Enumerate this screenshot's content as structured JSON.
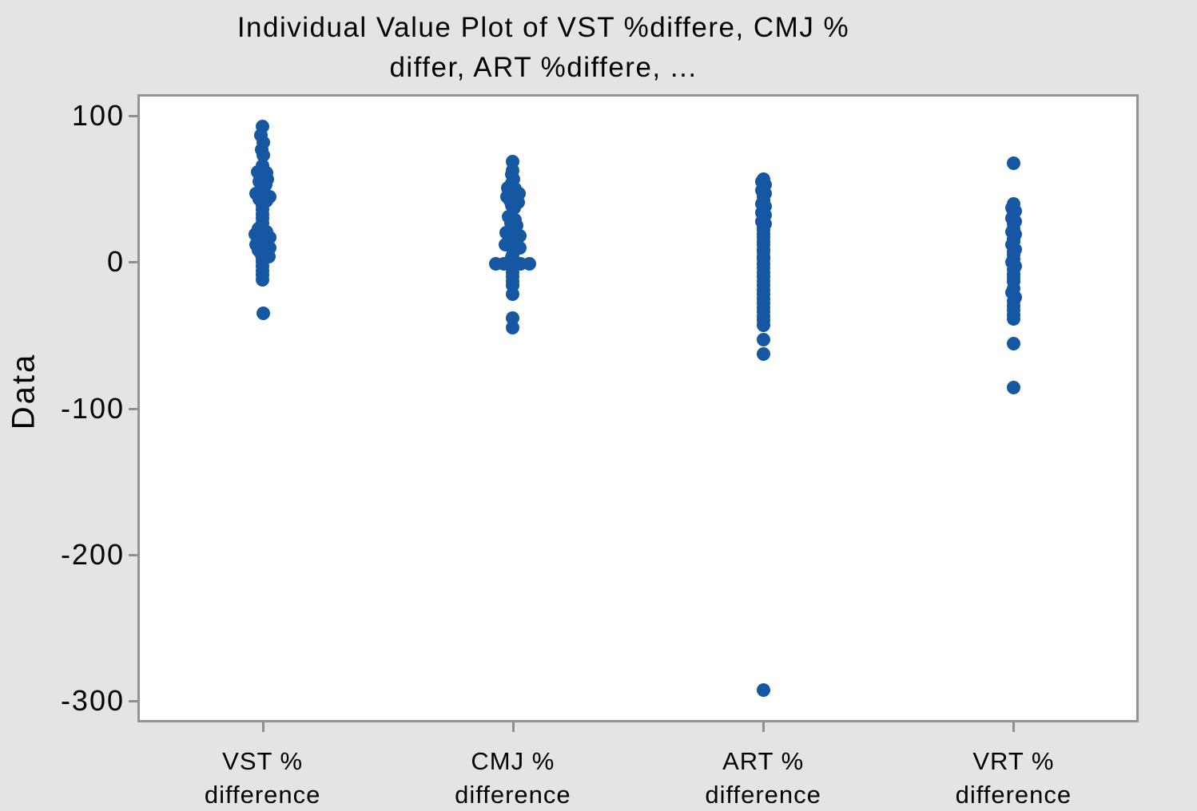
{
  "title": {
    "line1": "Individual Value Plot of VST %differe, CMJ %",
    "line2": "differ, ART %differe, ..."
  },
  "y_axis": {
    "label": "Data"
  },
  "colors": {
    "dot": "#1557a2",
    "page_bg": "#e4e4e4",
    "plot_bg": "#ffffff",
    "plot_border": "#949494",
    "tick": "#8f8f8f",
    "text": "#000000"
  },
  "chart_data": {
    "type": "scatter",
    "subtype": "individual-value-plot",
    "title": "Individual Value Plot of VST %differe, CMJ % differ, ART %differe, ...",
    "xlabel": "",
    "ylabel": "Data",
    "ylim": [
      -315,
      115
    ],
    "yticks": [
      100,
      0,
      -100,
      -200,
      -300
    ],
    "grid": false,
    "legend": "none",
    "categories": [
      "VST % difference",
      "CMJ % difference",
      "ART % difference",
      "VRT % difference"
    ],
    "category_labels_2line": [
      [
        "VST %",
        "difference"
      ],
      [
        "CMJ %",
        "difference"
      ],
      [
        "ART %",
        "difference"
      ],
      [
        "VRT %",
        "difference"
      ]
    ],
    "point_format": "[data_value, horizontal_jitter_px]",
    "series": [
      {
        "name": "VST % difference",
        "points": [
          [
            93,
            0
          ],
          [
            87,
            -2
          ],
          [
            82,
            1
          ],
          [
            77,
            -1
          ],
          [
            73,
            1
          ],
          [
            66,
            0
          ],
          [
            62,
            -6
          ],
          [
            61,
            5
          ],
          [
            59,
            -3
          ],
          [
            57,
            6
          ],
          [
            55,
            -4
          ],
          [
            53,
            4
          ],
          [
            50,
            0
          ],
          [
            47,
            -8
          ],
          [
            46,
            1
          ],
          [
            45,
            9
          ],
          [
            43,
            -4
          ],
          [
            42,
            5
          ],
          [
            39,
            0
          ],
          [
            36,
            0
          ],
          [
            33,
            0
          ],
          [
            30,
            0
          ],
          [
            27,
            0
          ],
          [
            23,
            -5
          ],
          [
            21,
            5
          ],
          [
            19,
            -9
          ],
          [
            18,
            0
          ],
          [
            17,
            9
          ],
          [
            15,
            -4
          ],
          [
            14,
            5
          ],
          [
            12,
            -8
          ],
          [
            11,
            1
          ],
          [
            10,
            9
          ],
          [
            8,
            -5
          ],
          [
            7,
            4
          ],
          [
            5,
            -1
          ],
          [
            4,
            8
          ],
          [
            2,
            0
          ],
          [
            0,
            0
          ],
          [
            -3,
            0
          ],
          [
            -6,
            0
          ],
          [
            -9,
            0
          ],
          [
            -12,
            0
          ],
          [
            -35,
            1
          ]
        ]
      },
      {
        "name": "CMJ % difference",
        "points": [
          [
            69,
            0
          ],
          [
            63,
            0
          ],
          [
            60,
            -1
          ],
          [
            57,
            1
          ],
          [
            54,
            -1
          ],
          [
            51,
            -6
          ],
          [
            50,
            3
          ],
          [
            48,
            -3
          ],
          [
            47,
            8
          ],
          [
            45,
            -7
          ],
          [
            44,
            2
          ],
          [
            42,
            -3
          ],
          [
            41,
            7
          ],
          [
            39,
            -1
          ],
          [
            37,
            2
          ],
          [
            31,
            -5
          ],
          [
            29,
            3
          ],
          [
            27,
            -2
          ],
          [
            25,
            5
          ],
          [
            23,
            -1
          ],
          [
            20,
            -8
          ],
          [
            19,
            1
          ],
          [
            18,
            9
          ],
          [
            16,
            -4
          ],
          [
            14,
            5
          ],
          [
            12,
            -9
          ],
          [
            11,
            0
          ],
          [
            10,
            9
          ],
          [
            5,
            0
          ],
          [
            3,
            -1
          ],
          [
            1,
            1
          ],
          [
            -1,
            -21
          ],
          [
            -1,
            -11
          ],
          [
            0,
            0
          ],
          [
            -1,
            10
          ],
          [
            -1,
            21
          ],
          [
            -4,
            0
          ],
          [
            -7,
            0
          ],
          [
            -10,
            0
          ],
          [
            -13,
            0
          ],
          [
            -16,
            0
          ],
          [
            -22,
            0
          ],
          [
            -38,
            0
          ],
          [
            -45,
            0
          ]
        ]
      },
      {
        "name": "ART % difference",
        "points": [
          [
            57,
            0
          ],
          [
            55,
            -2
          ],
          [
            53,
            2
          ],
          [
            51,
            0
          ],
          [
            49,
            -2
          ],
          [
            47,
            2
          ],
          [
            45,
            0
          ],
          [
            42,
            0
          ],
          [
            40,
            -2
          ],
          [
            38,
            2
          ],
          [
            36,
            0
          ],
          [
            34,
            -2
          ],
          [
            32,
            2
          ],
          [
            30,
            0
          ],
          [
            28,
            -2
          ],
          [
            26,
            2
          ],
          [
            24,
            0
          ],
          [
            22,
            0
          ],
          [
            19,
            0
          ],
          [
            17,
            0
          ],
          [
            14,
            0
          ],
          [
            12,
            0
          ],
          [
            9,
            0
          ],
          [
            7,
            0
          ],
          [
            4,
            0
          ],
          [
            2,
            0
          ],
          [
            -1,
            0
          ],
          [
            -4,
            0
          ],
          [
            -7,
            0
          ],
          [
            -10,
            0
          ],
          [
            -13,
            0
          ],
          [
            -16,
            0
          ],
          [
            -19,
            0
          ],
          [
            -22,
            0
          ],
          [
            -25,
            0
          ],
          [
            -28,
            0
          ],
          [
            -31,
            0
          ],
          [
            -34,
            0
          ],
          [
            -37,
            0
          ],
          [
            -40,
            0
          ],
          [
            -43,
            0
          ],
          [
            -53,
            0
          ],
          [
            -63,
            0
          ],
          [
            -293,
            0
          ]
        ]
      },
      {
        "name": "VRT % difference",
        "points": [
          [
            68,
            0
          ],
          [
            40,
            0
          ],
          [
            37,
            -2
          ],
          [
            35,
            2
          ],
          [
            33,
            0
          ],
          [
            30,
            -2
          ],
          [
            28,
            2
          ],
          [
            26,
            0
          ],
          [
            23,
            0
          ],
          [
            21,
            -2
          ],
          [
            19,
            2
          ],
          [
            16,
            0
          ],
          [
            14,
            0
          ],
          [
            12,
            -2
          ],
          [
            9,
            2
          ],
          [
            7,
            0
          ],
          [
            5,
            0
          ],
          [
            2,
            0
          ],
          [
            0,
            -2
          ],
          [
            -3,
            2
          ],
          [
            -5,
            0
          ],
          [
            -8,
            0
          ],
          [
            -11,
            0
          ],
          [
            -13,
            0
          ],
          [
            -18,
            0
          ],
          [
            -21,
            -2
          ],
          [
            -24,
            2
          ],
          [
            -27,
            0
          ],
          [
            -30,
            0
          ],
          [
            -33,
            0
          ],
          [
            -36,
            0
          ],
          [
            -39,
            0
          ],
          [
            -56,
            0
          ],
          [
            -86,
            0
          ]
        ]
      }
    ]
  }
}
